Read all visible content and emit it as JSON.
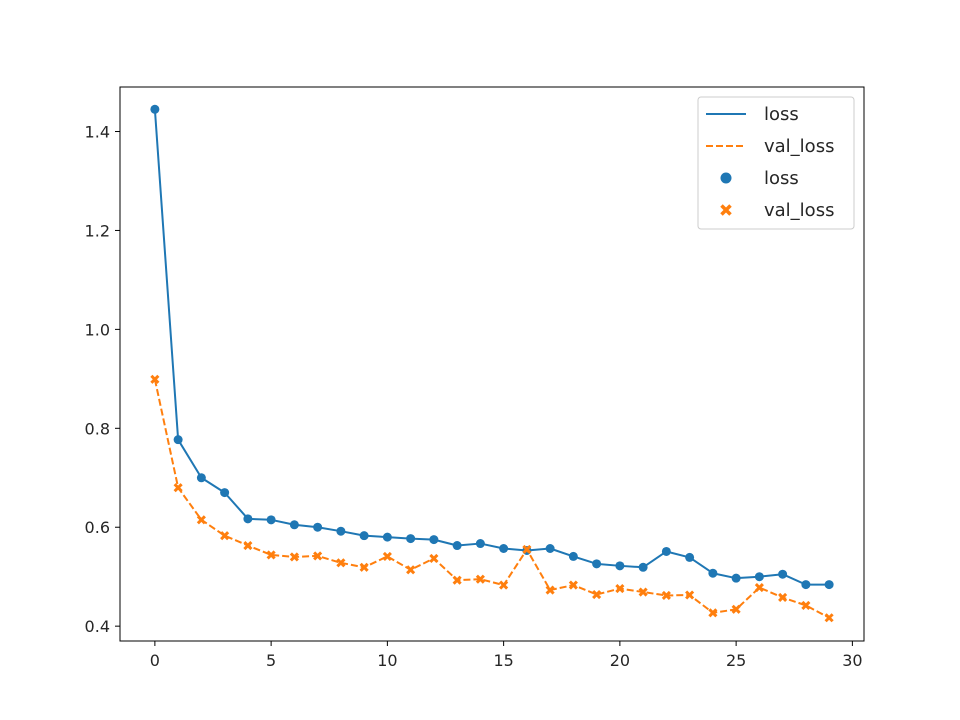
{
  "chart_data": {
    "type": "line",
    "title": "",
    "xlabel": "",
    "ylabel": "",
    "xlim": [
      -1.5,
      30.5
    ],
    "ylim": [
      0.37,
      1.49
    ],
    "grid": false,
    "legend_position": "top-right",
    "x_ticks": [
      0,
      5,
      10,
      15,
      20,
      25,
      30
    ],
    "y_ticks": [
      0.4,
      0.6,
      0.8,
      1.0,
      1.2,
      1.4
    ],
    "x_tick_labels": [
      "0",
      "5",
      "10",
      "15",
      "20",
      "25",
      "30"
    ],
    "y_tick_labels": [
      "0.4",
      "0.6",
      "0.8",
      "1.0",
      "1.2",
      "1.4"
    ],
    "x": [
      0,
      1,
      2,
      3,
      4,
      5,
      6,
      7,
      8,
      9,
      10,
      11,
      12,
      13,
      14,
      15,
      16,
      17,
      18,
      19,
      20,
      21,
      22,
      23,
      24,
      25,
      26,
      27,
      28,
      29
    ],
    "series": [
      {
        "name": "loss",
        "line_style": "solid",
        "marker": "circle",
        "color": "#1f77b4",
        "values": [
          1.445,
          0.777,
          0.7,
          0.67,
          0.617,
          0.615,
          0.605,
          0.6,
          0.592,
          0.583,
          0.58,
          0.577,
          0.575,
          0.563,
          0.567,
          0.557,
          0.553,
          0.557,
          0.541,
          0.526,
          0.522,
          0.519,
          0.551,
          0.539,
          0.507,
          0.497,
          0.5,
          0.505,
          0.484,
          0.484
        ]
      },
      {
        "name": "val_loss",
        "line_style": "dashed",
        "marker": "x",
        "color": "#ff7f0e",
        "values": [
          0.899,
          0.68,
          0.615,
          0.583,
          0.563,
          0.544,
          0.54,
          0.542,
          0.528,
          0.519,
          0.541,
          0.514,
          0.537,
          0.493,
          0.495,
          0.483,
          0.555,
          0.473,
          0.483,
          0.464,
          0.476,
          0.469,
          0.462,
          0.463,
          0.427,
          0.434,
          0.478,
          0.458,
          0.442,
          0.417
        ]
      }
    ],
    "legend_entries": [
      {
        "label": "loss",
        "kind": "line",
        "series": 0
      },
      {
        "label": "val_loss",
        "kind": "line",
        "series": 1
      },
      {
        "label": "loss",
        "kind": "marker",
        "series": 0
      },
      {
        "label": "val_loss",
        "kind": "marker",
        "series": 1
      }
    ]
  }
}
